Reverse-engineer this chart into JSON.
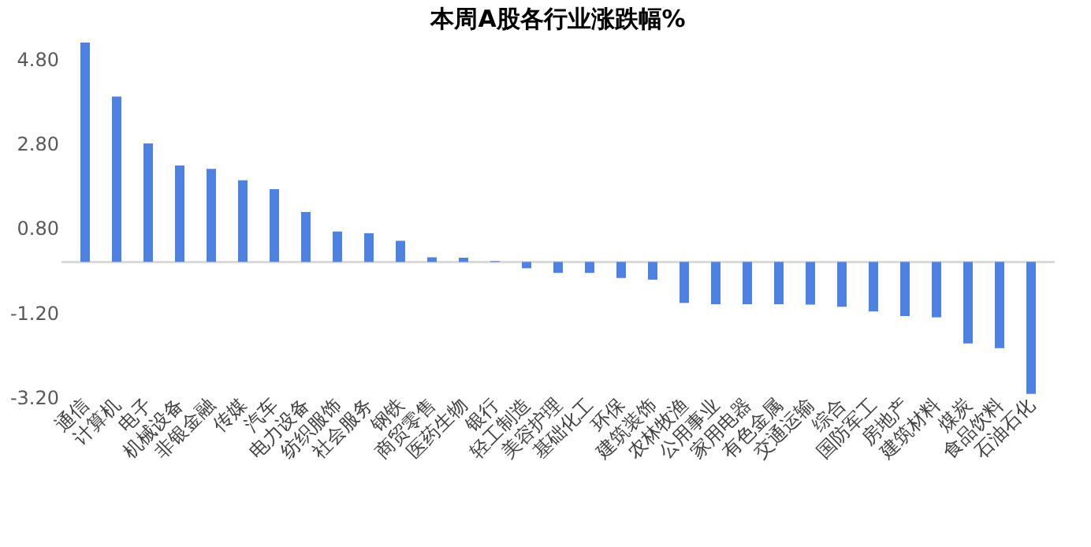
{
  "chart_data": {
    "type": "bar",
    "title": "本周A股各行业涨跌幅%",
    "categories": [
      "通信",
      "计算机",
      "电子",
      "机械设备",
      "非银金融",
      "传媒",
      "汽车",
      "电力设备",
      "纺织服饰",
      "社会服务",
      "钢铁",
      "商贸零售",
      "医药生物",
      "银行",
      "轻工制造",
      "美容护理",
      "基础化工",
      "环保",
      "建筑装饰",
      "农林牧渔",
      "公用事业",
      "家用电器",
      "有色金属",
      "交通运输",
      "综合",
      "国防军工",
      "房地产",
      "建筑材料",
      "煤炭",
      "食品饮料",
      "石油石化"
    ],
    "values": [
      5.19,
      3.91,
      2.8,
      2.28,
      2.2,
      1.93,
      1.72,
      1.18,
      0.72,
      0.68,
      0.5,
      0.11,
      0.1,
      0.02,
      -0.15,
      -0.26,
      -0.26,
      -0.38,
      -0.42,
      -0.97,
      -1.0,
      -1.0,
      -1.0,
      -1.01,
      -1.06,
      -1.17,
      -1.28,
      -1.31,
      -1.93,
      -2.04,
      -3.12
    ],
    "color": "#4f81e0",
    "ylim": [
      -3.2,
      5.3
    ],
    "yticks": [
      {
        "value": -3.2,
        "label": "-3.20"
      },
      {
        "value": -1.2,
        "label": "-1.20"
      },
      {
        "value": 0.8,
        "label": "0.80"
      },
      {
        "value": 2.8,
        "label": "2.80"
      },
      {
        "value": 4.8,
        "label": "4.80"
      }
    ],
    "grid": false,
    "legend": false
  }
}
